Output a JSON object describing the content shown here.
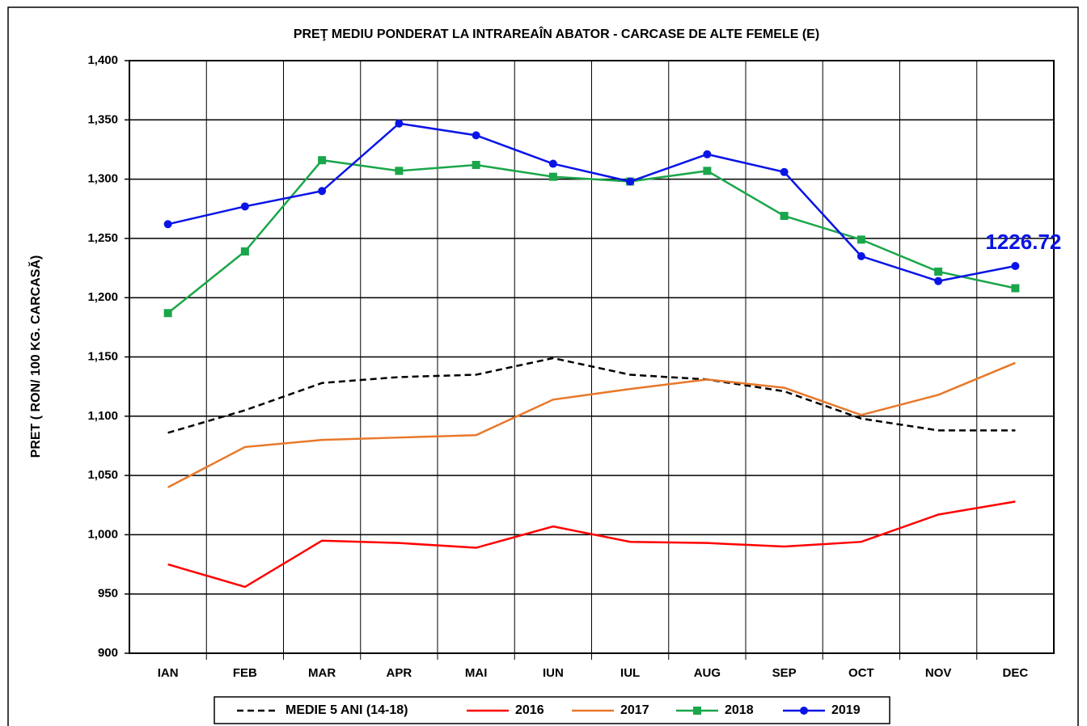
{
  "chart_data": {
    "type": "line",
    "title": "PREŢ MEDIU PONDERAT LA INTRAREAÎN ABATOR - CARCASE DE ALTE  FEMELE (E)",
    "y_label": "PRET ( RON/ 100 KG. CARCASĂ)",
    "categories": [
      "IAN",
      "FEB",
      "MAR",
      "APR",
      "MAI",
      "IUN",
      "IUL",
      "AUG",
      "SEP",
      "OCT",
      "NOV",
      "DEC"
    ],
    "ylim": [
      900,
      1400
    ],
    "yticks": [
      900,
      950,
      {
        "value": 1000,
        "label": "1,000"
      },
      {
        "value": 1050,
        "label": "1,050"
      },
      {
        "value": 1100,
        "label": "1,100"
      },
      {
        "value": 1150,
        "label": "1,150"
      },
      {
        "value": 1200,
        "label": "1,200"
      },
      {
        "value": 1250,
        "label": "1,250"
      },
      {
        "value": 1300,
        "label": "1,300"
      },
      {
        "value": 1350,
        "label": "1,350"
      },
      {
        "value": 1400,
        "label": "1,400"
      }
    ],
    "grid": true,
    "legend": "bottom",
    "series": [
      {
        "name": "MEDIE 5 ANI (14-18)",
        "color": "#000000",
        "dash": true,
        "values": [
          1086,
          1105,
          1128,
          1133,
          1135,
          1149,
          1135,
          1131,
          1121,
          1098,
          1088,
          1088
        ]
      },
      {
        "name": "2016",
        "color": "#ff0000",
        "values": [
          975,
          956,
          995,
          993,
          989,
          1007,
          994,
          993,
          990,
          994,
          1017,
          1028
        ]
      },
      {
        "name": "2017",
        "color": "#e8782a",
        "values": [
          1040,
          1074,
          1080,
          1082,
          1084,
          1114,
          1123,
          1131,
          1124,
          1101,
          1118,
          1145
        ]
      },
      {
        "name": "2018",
        "color": "#1aa64a",
        "marker": "square",
        "values": [
          1187,
          1239,
          1316,
          1307,
          1312,
          1302,
          1298,
          1307,
          1269,
          1249,
          1222,
          1208
        ]
      },
      {
        "name": "2019",
        "color": "#0a14e6",
        "marker": "circle",
        "data_labels": "last",
        "values": [
          1262,
          1277,
          1290,
          1347,
          1337,
          1313,
          1298,
          1321,
          1306,
          1235,
          1214,
          1226.72
        ]
      }
    ]
  }
}
